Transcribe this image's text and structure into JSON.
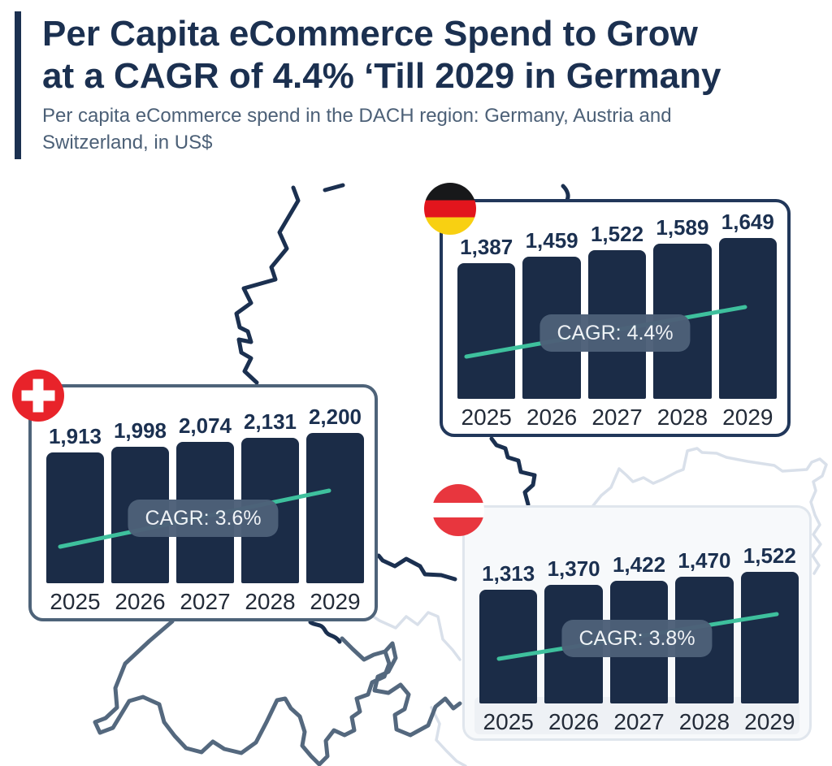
{
  "header": {
    "title_line1": "Per Capita eCommerce Spend to Grow",
    "title_line2": "at a CAGR of 4.4% ‘Till 2029 in Germany",
    "subtitle": "Per capita eCommerce spend in the DACH region: Germany, Austria and Switzerland, in US$"
  },
  "colors": {
    "navy": "#1b3050",
    "bar_fill": "#1b2c47",
    "teal_arrow": "#3ec09d",
    "cagr_pill_bg": "#4d6078",
    "subtitle_text": "#4c6077",
    "swiss_border": "#4e6379",
    "map_germany_stroke": "#1b3050",
    "map_switzerland_stroke": "#54687e",
    "map_austria_stroke": "#d9e0ea",
    "swiss_flag_red": "#e8232a",
    "austria_flag_red": "#e8363e",
    "german_flag_black": "#17181a",
    "german_flag_red": "#e2151d",
    "german_flag_gold": "#f8d012"
  },
  "chart_data": [
    {
      "type": "bar",
      "country": "Germany",
      "flag_icon": "germany-flag",
      "categories": [
        "2025",
        "2026",
        "2027",
        "2028",
        "2029"
      ],
      "values": [
        1387,
        1459,
        1522,
        1589,
        1649
      ],
      "value_labels": [
        "1,387",
        "1,459",
        "1,522",
        "1,589",
        "1,649"
      ],
      "cagr_label": "CAGR: 4.4%",
      "ylabel": "Per capita eCommerce spend (US$)",
      "ylim": [
        0,
        1649
      ],
      "trend": "up",
      "legend": "none",
      "grid": false
    },
    {
      "type": "bar",
      "country": "Switzerland",
      "flag_icon": "switzerland-flag",
      "categories": [
        "2025",
        "2026",
        "2027",
        "2028",
        "2029"
      ],
      "values": [
        1913,
        1998,
        2074,
        2131,
        2200
      ],
      "value_labels": [
        "1,913",
        "1,998",
        "2,074",
        "2,131",
        "2,200"
      ],
      "cagr_label": "CAGR: 3.6%",
      "ylabel": "Per capita eCommerce spend (US$)",
      "ylim": [
        0,
        2200
      ],
      "trend": "up",
      "legend": "none",
      "grid": false
    },
    {
      "type": "bar",
      "country": "Austria",
      "flag_icon": "austria-flag",
      "categories": [
        "2025",
        "2026",
        "2027",
        "2028",
        "2029"
      ],
      "values": [
        1313,
        1370,
        1422,
        1470,
        1522
      ],
      "value_labels": [
        "1,313",
        "1,370",
        "1,422",
        "1,470",
        "1,522"
      ],
      "cagr_label": "CAGR: 3.8%",
      "ylabel": "Per capita eCommerce spend (US$)",
      "ylim": [
        0,
        1522
      ],
      "trend": "up",
      "legend": "none",
      "grid": false
    }
  ]
}
